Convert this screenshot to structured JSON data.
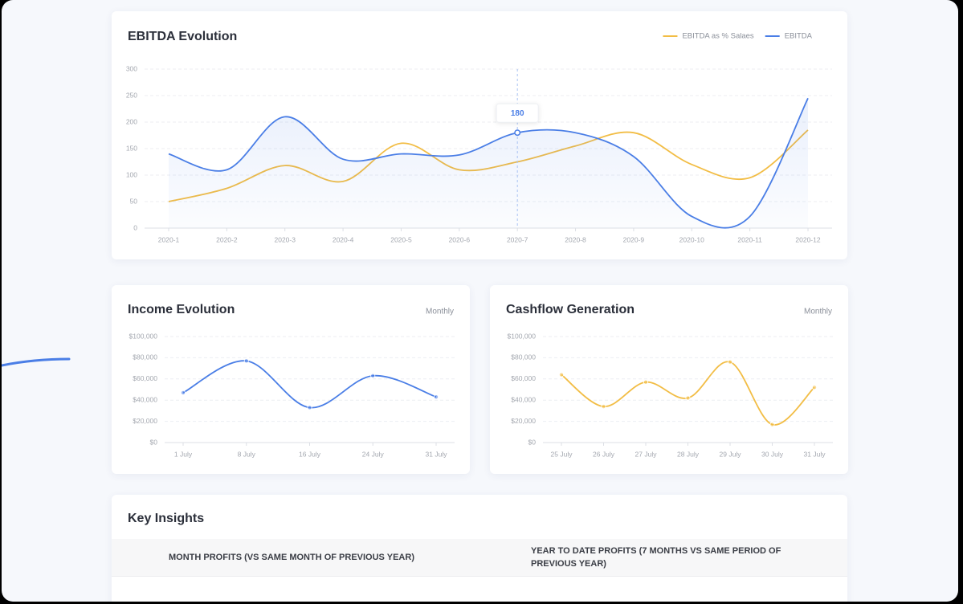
{
  "chart_data": [
    {
      "type": "line",
      "title": "EBITDA Evolution",
      "categories": [
        "2020-1",
        "2020-2",
        "2020-3",
        "2020-4",
        "2020-5",
        "2020-6",
        "2020-7",
        "2020-8",
        "2020-9",
        "2020-10",
        "2020-11",
        "2020-12"
      ],
      "series": [
        {
          "name": "EBITDA as % Salaes",
          "color": "#f2bd45",
          "values": [
            50,
            75,
            118,
            88,
            160,
            110,
            125,
            155,
            180,
            120,
            95,
            185
          ]
        },
        {
          "name": "EBITDA",
          "color": "#4a7ee6",
          "area": true,
          "values": [
            140,
            110,
            210,
            130,
            140,
            138,
            180,
            180,
            135,
            22,
            22,
            245
          ],
          "value_labels": [
            null,
            null,
            null,
            null,
            null,
            null,
            "180",
            null,
            null,
            null,
            null,
            null
          ]
        }
      ],
      "ylim": [
        0,
        300
      ],
      "yticks": [
        0,
        50,
        100,
        150,
        200,
        250,
        300
      ],
      "grid": true,
      "legend": "top-right"
    },
    {
      "type": "line",
      "title": "Income Evolution",
      "subtitle": "Monthly",
      "categories": [
        "1 July",
        "8 July",
        "16 July",
        "24 July",
        "31 July"
      ],
      "series": [
        {
          "color": "#4a7ee6",
          "markers": true,
          "values": [
            47000,
            77000,
            33000,
            63000,
            43000
          ]
        }
      ],
      "ylim": [
        0,
        100000
      ],
      "yticks": [
        {
          "value": 0,
          "label": "$0"
        },
        {
          "value": 20000,
          "label": "$20,000"
        },
        {
          "value": 40000,
          "label": "$40,000"
        },
        {
          "value": 60000,
          "label": "$60,000"
        },
        {
          "value": 80000,
          "label": "$80,000"
        },
        {
          "value": 100000,
          "label": "$100,000"
        }
      ],
      "grid": true
    },
    {
      "type": "line",
      "title": "Cashflow Generation",
      "subtitle": "Monthly",
      "categories": [
        "25 July",
        "26 July",
        "27 July",
        "28 July",
        "29 July",
        "30 July",
        "31 July"
      ],
      "series": [
        {
          "color": "#f2bd45",
          "markers": true,
          "values": [
            64000,
            34000,
            57000,
            42000,
            76000,
            17000,
            52000
          ]
        }
      ],
      "ylim": [
        0,
        100000
      ],
      "yticks": [
        {
          "value": 0,
          "label": "$0"
        },
        {
          "value": 20000,
          "label": "$20,000"
        },
        {
          "value": 40000,
          "label": "$40,000"
        },
        {
          "value": 60000,
          "label": "$60,000"
        },
        {
          "value": 80000,
          "label": "$80,000"
        },
        {
          "value": 100000,
          "label": "$100,000"
        }
      ],
      "grid": true
    }
  ],
  "insights": {
    "title": "Key Insights",
    "columns": [
      "MONTH PROFITS (VS SAME MONTH OF PREVIOUS YEAR)",
      "YEAR TO DATE PROFITS  (7 MONTHS VS SAME PERIOD OF PREVIOUS YEAR)"
    ]
  }
}
